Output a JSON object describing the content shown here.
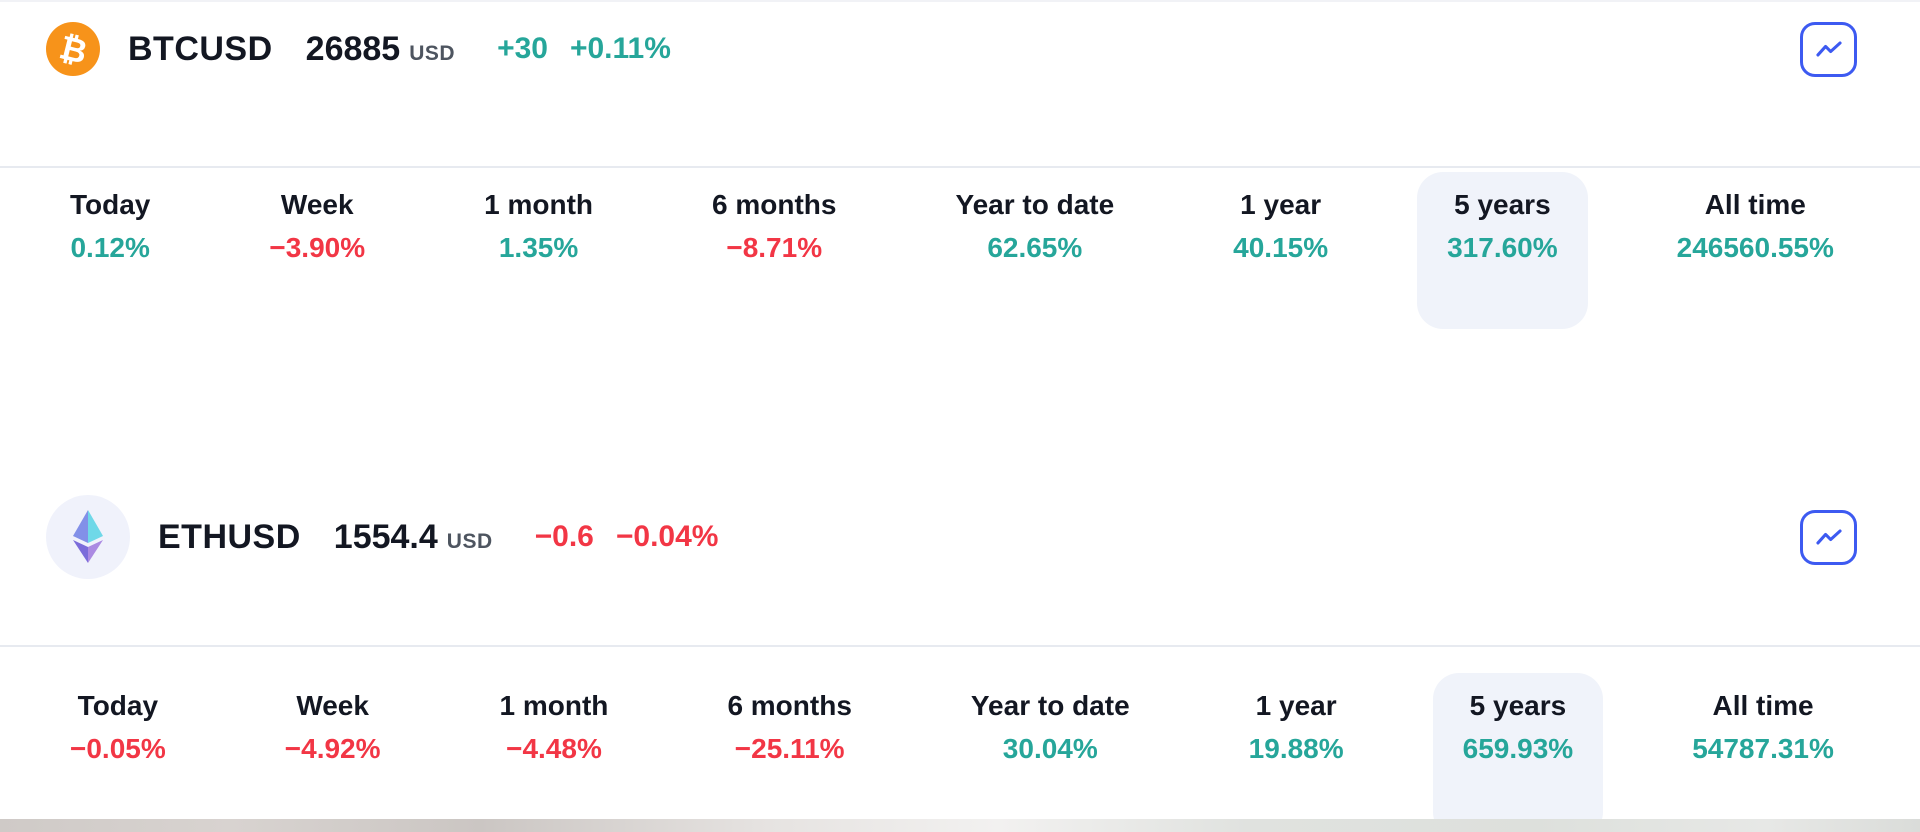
{
  "colors": {
    "up_green": "#26a69a",
    "down_red": "#f23645",
    "accent_blue": "#3d5af1",
    "text_dark": "#131722",
    "currency_gray": "#4e5560",
    "highlight_bg": "#f0f3fa",
    "bitcoin_orange": "#f7931a",
    "eth_avatar_bg": "#f0f2fb"
  },
  "widgets": [
    {
      "symbol": "BTCUSD",
      "price": "26885",
      "currency": "USD",
      "change": "+30",
      "change_percent": "+0.11%",
      "direction": "up",
      "icon": "bitcoin-icon",
      "icon_glyph": "₿",
      "chart_button_icon": "trend-line-icon",
      "periods": [
        {
          "label": "Today",
          "value": "0.12%",
          "direction": "up",
          "selected": false
        },
        {
          "label": "Week",
          "value": "−3.90%",
          "direction": "down",
          "selected": false
        },
        {
          "label": "1 month",
          "value": "1.35%",
          "direction": "up",
          "selected": false
        },
        {
          "label": "6 months",
          "value": "−8.71%",
          "direction": "down",
          "selected": false
        },
        {
          "label": "Year to date",
          "value": "62.65%",
          "direction": "up",
          "selected": false
        },
        {
          "label": "1 year",
          "value": "40.15%",
          "direction": "up",
          "selected": false
        },
        {
          "label": "5 years",
          "value": "317.60%",
          "direction": "up",
          "selected": true
        },
        {
          "label": "All time",
          "value": "246560.55%",
          "direction": "up",
          "selected": false
        }
      ]
    },
    {
      "symbol": "ETHUSD",
      "price": "1554.4",
      "currency": "USD",
      "change": "−0.6",
      "change_percent": "−0.04%",
      "direction": "down",
      "icon": "ethereum-icon",
      "chart_button_icon": "trend-line-icon",
      "periods": [
        {
          "label": "Today",
          "value": "−0.05%",
          "direction": "down",
          "selected": false
        },
        {
          "label": "Week",
          "value": "−4.92%",
          "direction": "down",
          "selected": false
        },
        {
          "label": "1 month",
          "value": "−4.48%",
          "direction": "down",
          "selected": false
        },
        {
          "label": "6 months",
          "value": "−25.11%",
          "direction": "down",
          "selected": false
        },
        {
          "label": "Year to date",
          "value": "30.04%",
          "direction": "up",
          "selected": false
        },
        {
          "label": "1 year",
          "value": "19.88%",
          "direction": "up",
          "selected": false
        },
        {
          "label": "5 years",
          "value": "659.93%",
          "direction": "up",
          "selected": true
        },
        {
          "label": "All time",
          "value": "54787.31%",
          "direction": "up",
          "selected": false
        }
      ]
    }
  ]
}
